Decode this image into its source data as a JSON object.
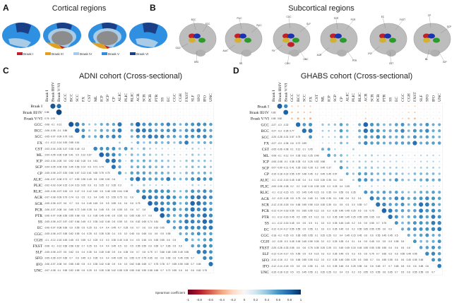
{
  "panels": {
    "A": {
      "letter": "A",
      "title": "Cortical regions",
      "legend": [
        {
          "label": "Braak I",
          "color": "#c0202a"
        },
        {
          "label": "Braak III",
          "color": "#e0a020"
        },
        {
          "label": "Braak IV",
          "color": "#a9cbe6"
        },
        {
          "label": "Braak V",
          "color": "#2f8fe0"
        },
        {
          "label": "Braak VI",
          "color": "#1b3f86"
        }
      ]
    },
    "B": {
      "letter": "B",
      "title": "Subcortical regions",
      "brains": [
        [
          "BCC",
          "SCC",
          "GCC",
          "SFO"
        ],
        [
          "PLIC",
          "RLIC",
          "ALIC",
          "SS"
        ],
        [
          "CGC",
          "SLF",
          "FX",
          "CGH",
          "UNC"
        ],
        [
          "SCR",
          "PCR",
          "ACR",
          "PTR"
        ],
        [
          "EC",
          "FXST",
          "IFO",
          "CST"
        ],
        [
          "CP",
          "SCP",
          "ML",
          "ICP"
        ]
      ]
    },
    "C": {
      "letter": "C"
    },
    "D": {
      "letter": "D"
    }
  },
  "colorbar": {
    "label": "Spearman coefficient",
    "ticks": [
      "-1",
      "-0.8",
      "-0.6",
      "-0.4",
      "-0.2",
      "0",
      "0.2",
      "0.4",
      "0.6",
      "0.8",
      "1"
    ],
    "colors": [
      "#67001f",
      "#b2182b",
      "#d6604d",
      "#f4a582",
      "#fddbc7",
      "#f7f7f7",
      "#d1e5f0",
      "#92c5de",
      "#4393c3",
      "#2166ac",
      "#053061"
    ]
  },
  "chart_data": [
    {
      "type": "heatmap",
      "title": "ADNI cohort (Cross-sectional)",
      "labels": [
        "Braak I",
        "Braak III/IV",
        "Braak V/VI",
        "GCC",
        "BCC",
        "SCC",
        "FX",
        "CST",
        "ML",
        "ICP",
        "SCP",
        "CP",
        "ALIC",
        "PLIC",
        "RLIC",
        "ACR",
        "SCR",
        "PCR",
        "PTR",
        "SS",
        "EC",
        "CGC",
        "CGH",
        "FXST",
        "SLF",
        "SFO",
        "IFO",
        "UNC"
      ],
      "range": [
        -1,
        1
      ],
      "lower_triangle": [
        [
          0.86
        ],
        [
          0.76,
          0.93
        ],
        [
          -0.08,
          -0.1,
          -0.12
        ],
        [
          -0.06,
          -0.08,
          -0.1,
          0.86
        ],
        [
          -0.05,
          -0.07,
          -0.09,
          0.75,
          0.81
        ],
        [
          -0.1,
          -0.12,
          -0.14,
          0.53,
          0.58,
          0.61
        ],
        [
          -0.03,
          -0.04,
          -0.05,
          0.37,
          0.38,
          0.45,
          0.2
        ],
        [
          -0.04,
          -0.05,
          -0.06,
          0.39,
          0.41,
          0.5,
          0.12,
          0.67
        ],
        [
          -0.03,
          -0.04,
          -0.05,
          0.5,
          0.52,
          0.62,
          0.18,
          0.6,
          0.81
        ],
        [
          -0.04,
          -0.05,
          -0.06,
          0.52,
          0.49,
          0.56,
          0.14,
          0.6,
          0.71,
          0.74
        ],
        [
          -0.05,
          -0.06,
          -0.07,
          0.53,
          0.56,
          0.67,
          0.13,
          0.61,
          0.65,
          0.75,
          0.75
        ],
        [
          -0.06,
          -0.07,
          -0.08,
          0.73,
          0.7,
          0.59,
          0.35,
          0.45,
          0.5,
          0.55,
          0.52,
          0.6
        ],
        [
          -0.02,
          -0.03,
          -0.04,
          0.15,
          0.14,
          0.16,
          0.05,
          0.6,
          0.3,
          0.25,
          0.2,
          0.35,
          0.3
        ],
        [
          -0.05,
          -0.06,
          -0.07,
          0.53,
          0.5,
          0.47,
          0.3,
          0.42,
          0.45,
          0.5,
          0.48,
          0.55,
          0.64,
          0.38
        ],
        [
          -0.07,
          -0.08,
          -0.09,
          0.79,
          0.74,
          0.6,
          0.5,
          0.3,
          0.4,
          0.45,
          0.5,
          0.55,
          0.75,
          0.2,
          0.6
        ],
        [
          -0.05,
          -0.06,
          -0.07,
          0.6,
          0.7,
          0.6,
          0.4,
          0.45,
          0.45,
          0.5,
          0.5,
          0.55,
          0.6,
          0.4,
          0.6,
          0.75
        ],
        [
          -0.06,
          -0.07,
          -0.08,
          0.6,
          0.65,
          0.72,
          0.45,
          0.35,
          0.4,
          0.45,
          0.5,
          0.5,
          0.55,
          0.3,
          0.6,
          0.7,
          0.8
        ],
        [
          -0.06,
          -0.07,
          -0.08,
          0.55,
          0.55,
          0.68,
          0.5,
          0.3,
          0.35,
          0.45,
          0.45,
          0.5,
          0.55,
          0.3,
          0.65,
          0.65,
          0.7,
          0.8
        ],
        [
          -0.05,
          -0.06,
          -0.07,
          0.57,
          0.57,
          0.66,
          0.45,
          0.3,
          0.35,
          0.42,
          0.45,
          0.5,
          0.55,
          0.3,
          0.6,
          0.62,
          0.65,
          0.74,
          0.81
        ],
        [
          -0.06,
          -0.07,
          -0.08,
          0.66,
          0.6,
          0.55,
          0.5,
          0.25,
          0.3,
          0.4,
          0.4,
          0.45,
          0.7,
          0.25,
          0.6,
          0.7,
          0.6,
          0.6,
          0.62,
          0.65
        ],
        [
          -0.05,
          -0.06,
          -0.07,
          0.55,
          0.62,
          0.55,
          0.4,
          0.25,
          0.3,
          0.35,
          0.35,
          0.4,
          0.5,
          0.2,
          0.45,
          0.6,
          0.65,
          0.6,
          0.5,
          0.5,
          0.55
        ],
        [
          -0.1,
          -0.12,
          -0.15,
          0.45,
          0.45,
          0.5,
          0.55,
          0.2,
          0.25,
          0.3,
          0.3,
          0.35,
          0.45,
          0.15,
          0.4,
          0.5,
          0.45,
          0.5,
          0.55,
          0.55,
          0.6,
          0.5
        ],
        [
          -0.08,
          -0.1,
          -0.12,
          0.56,
          0.58,
          0.62,
          0.7,
          0.25,
          0.3,
          0.4,
          0.4,
          0.45,
          0.5,
          0.2,
          0.5,
          0.55,
          0.55,
          0.6,
          0.65,
          0.7,
          0.65,
          0.5,
          0.6
        ],
        [
          -0.05,
          -0.06,
          -0.07,
          0.6,
          0.62,
          0.6,
          0.4,
          0.35,
          0.4,
          0.45,
          0.45,
          0.5,
          0.6,
          0.35,
          0.6,
          0.7,
          0.8,
          0.75,
          0.7,
          0.68,
          0.65,
          0.55,
          0.45,
          0.55
        ],
        [
          -0.05,
          -0.06,
          -0.07,
          0.65,
          0.7,
          0.6,
          0.45,
          0.3,
          0.35,
          0.4,
          0.4,
          0.45,
          0.65,
          0.3,
          0.55,
          0.72,
          0.75,
          0.65,
          0.6,
          0.6,
          0.65,
          0.6,
          0.45,
          0.55,
          0.7
        ],
        [
          -0.06,
          -0.07,
          -0.08,
          0.6,
          0.58,
          0.65,
          0.5,
          0.3,
          0.35,
          0.42,
          0.45,
          0.5,
          0.6,
          0.3,
          0.62,
          0.68,
          0.65,
          0.7,
          0.75,
          0.78,
          0.7,
          0.55,
          0.55,
          0.65,
          0.7,
          0.65
        ],
        [
          -0.07,
          -0.08,
          -0.1,
          0.55,
          0.52,
          0.55,
          0.5,
          0.25,
          0.3,
          0.35,
          0.38,
          0.42,
          0.58,
          0.25,
          0.55,
          0.62,
          0.55,
          0.58,
          0.65,
          0.7,
          0.72,
          0.55,
          0.6,
          0.6,
          0.6,
          0.62,
          0.75
        ]
      ]
    },
    {
      "type": "heatmap",
      "title": "GHABS cohort (Cross-sectional)",
      "labels": [
        "Braak I",
        "Braak III/IV",
        "Braak V/VI",
        "GCC",
        "BCC",
        "SCC",
        "FX",
        "CST",
        "ML",
        "ICP",
        "SCP",
        "CP",
        "ALIC",
        "PLIC",
        "RLIC",
        "ACR",
        "SCR",
        "PCR",
        "PTR",
        "SS",
        "EC",
        "CGC",
        "CGH",
        "FXST",
        "SLF",
        "SFO",
        "IFO",
        "UNC"
      ],
      "range": [
        -1,
        1
      ],
      "lower_triangle": [
        [
          0.83
        ],
        [
          0.65,
          0.82
        ],
        [
          -0.27,
          -0.3,
          -0.32
        ],
        [
          -0.27,
          -0.3,
          -0.35,
          0.77
        ],
        [
          -0.25,
          -0.28,
          -0.31,
          0.57,
          0.75
        ],
        [
          -0.27,
          -0.3,
          -0.36,
          0.6,
          0.72,
          0.59
        ],
        [
          -0.05,
          -0.06,
          -0.08,
          0.1,
          0.12,
          0.1,
          0.05
        ],
        [
          -0.08,
          -0.1,
          -0.12,
          0.4,
          0.35,
          0.31,
          0.25,
          0.48
        ],
        [
          -0.06,
          -0.08,
          -0.1,
          0.38,
          0.35,
          0.3,
          0.25,
          0.52,
          0.58
        ],
        [
          -0.07,
          -0.09,
          -0.11,
          0.41,
          0.35,
          0.33,
          0.28,
          0.3,
          0.45,
          0.37
        ],
        [
          -0.15,
          -0.18,
          -0.22,
          0.55,
          0.57,
          0.48,
          0.45,
          0.2,
          0.45,
          0.45,
          0.57
        ],
        [
          -0.1,
          -0.12,
          -0.15,
          0.45,
          0.45,
          0.4,
          0.4,
          0.15,
          0.35,
          0.35,
          0.4,
          0.5
        ],
        [
          -0.05,
          -0.06,
          -0.08,
          0.2,
          0.2,
          0.18,
          0.15,
          0.35,
          0.25,
          0.3,
          0.25,
          0.4,
          0.35
        ],
        [
          -0.1,
          -0.12,
          -0.15,
          0.5,
          0.5,
          0.45,
          0.45,
          0.15,
          0.3,
          0.35,
          0.4,
          0.55,
          0.6,
          0.35
        ],
        [
          -0.2,
          -0.22,
          -0.28,
          0.8,
          0.75,
          0.6,
          0.65,
          0.1,
          0.35,
          0.35,
          0.4,
          0.55,
          0.6,
          0.2,
          0.6
        ],
        [
          -0.12,
          -0.15,
          -0.18,
          0.6,
          0.65,
          0.55,
          0.55,
          0.15,
          0.35,
          0.35,
          0.4,
          0.5,
          0.5,
          0.3,
          0.55,
          0.7
        ],
        [
          -0.12,
          -0.14,
          -0.18,
          0.55,
          0.6,
          0.65,
          0.55,
          0.12,
          0.3,
          0.3,
          0.35,
          0.45,
          0.45,
          0.25,
          0.5,
          0.6,
          0.75
        ],
        [
          -0.1,
          -0.12,
          -0.16,
          0.45,
          0.5,
          0.55,
          0.5,
          0.12,
          0.3,
          0.3,
          0.35,
          0.45,
          0.45,
          0.25,
          0.55,
          0.55,
          0.65,
          0.8
        ],
        [
          -0.1,
          -0.12,
          -0.15,
          0.45,
          0.5,
          0.5,
          0.5,
          0.1,
          0.3,
          0.3,
          0.35,
          0.45,
          0.45,
          0.2,
          0.5,
          0.5,
          0.55,
          0.7,
          0.75
        ],
        [
          -0.12,
          -0.14,
          -0.17,
          0.55,
          0.55,
          0.5,
          0.55,
          0.1,
          0.3,
          0.3,
          0.35,
          0.45,
          0.6,
          0.2,
          0.55,
          0.65,
          0.55,
          0.55,
          0.6,
          0.6
        ],
        [
          -0.18,
          -0.2,
          -0.25,
          0.6,
          0.65,
          0.55,
          0.55,
          0.1,
          0.25,
          0.25,
          0.3,
          0.4,
          0.45,
          0.15,
          0.45,
          0.6,
          0.6,
          0.55,
          0.45,
          0.45,
          0.5
        ],
        [
          -0.2,
          -0.25,
          -0.3,
          0.45,
          0.45,
          0.45,
          0.55,
          0.05,
          0.2,
          0.2,
          0.25,
          0.35,
          0.4,
          0.1,
          0.4,
          0.5,
          0.45,
          0.5,
          0.5,
          0.5,
          0.55,
          0.5
        ],
        [
          -0.25,
          -0.28,
          -0.33,
          0.55,
          0.6,
          0.6,
          0.75,
          0.08,
          0.25,
          0.25,
          0.3,
          0.45,
          0.45,
          0.15,
          0.45,
          0.55,
          0.55,
          0.55,
          0.55,
          0.6,
          0.6,
          0.5,
          0.6
        ],
        [
          -0.12,
          -0.14,
          -0.17,
          0.5,
          0.55,
          0.5,
          0.5,
          0.15,
          0.3,
          0.3,
          0.35,
          0.45,
          0.5,
          0.3,
          0.5,
          0.6,
          0.75,
          0.7,
          0.65,
          0.6,
          0.6,
          0.55,
          0.45,
          0.55
        ],
        [
          -0.14,
          -0.16,
          -0.2,
          0.6,
          0.65,
          0.55,
          0.55,
          0.12,
          0.3,
          0.3,
          0.35,
          0.45,
          0.55,
          0.25,
          0.5,
          0.65,
          0.7,
          0.6,
          0.55,
          0.55,
          0.6,
          0.6,
          0.45,
          0.55,
          0.65
        ],
        [
          -0.12,
          -0.14,
          -0.18,
          0.5,
          0.5,
          0.5,
          0.55,
          0.1,
          0.3,
          0.3,
          0.35,
          0.45,
          0.5,
          0.25,
          0.55,
          0.6,
          0.6,
          0.65,
          0.7,
          0.7,
          0.65,
          0.5,
          0.5,
          0.6,
          0.65,
          0.6
        ],
        [
          -0.15,
          -0.18,
          -0.22,
          0.5,
          0.5,
          0.45,
          0.55,
          0.1,
          0.25,
          0.25,
          0.3,
          0.4,
          0.5,
          0.2,
          0.5,
          0.55,
          0.5,
          0.55,
          0.6,
          0.65,
          0.7,
          0.5,
          0.6,
          0.55,
          0.55,
          0.6,
          0.7
        ]
      ]
    }
  ]
}
